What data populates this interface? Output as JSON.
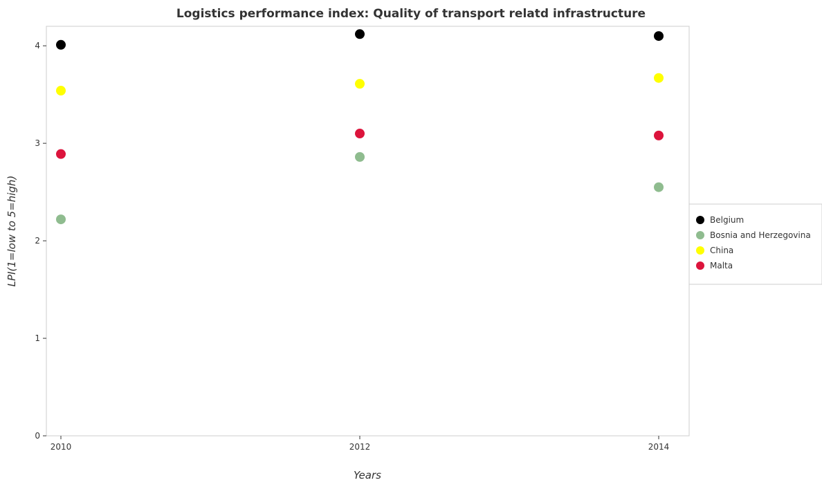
{
  "chart_data": {
    "type": "scatter",
    "title": "Logistics performance index: Quality of transport relatd infrastructure",
    "xlabel": "Years",
    "ylabel": "LPI(1=low to 5=high)",
    "categories": [
      "2010",
      "2012",
      "2014"
    ],
    "ylim": [
      0,
      4.2
    ],
    "yticks": [
      "0",
      "1",
      "2",
      "3",
      "4"
    ],
    "grid": false,
    "legend_position": "right",
    "series": [
      {
        "name": "Belgium",
        "color": "#000000",
        "values": [
          4.01,
          4.12,
          4.1
        ]
      },
      {
        "name": "Bosnia and Herzegovina",
        "color": "#8fbc8f",
        "values": [
          2.22,
          2.86,
          2.55
        ]
      },
      {
        "name": "China",
        "color": "#ffff00",
        "values": [
          3.54,
          3.61,
          3.67
        ]
      },
      {
        "name": "Malta",
        "color": "#dc143c",
        "values": [
          2.89,
          3.1,
          3.08
        ]
      }
    ]
  }
}
